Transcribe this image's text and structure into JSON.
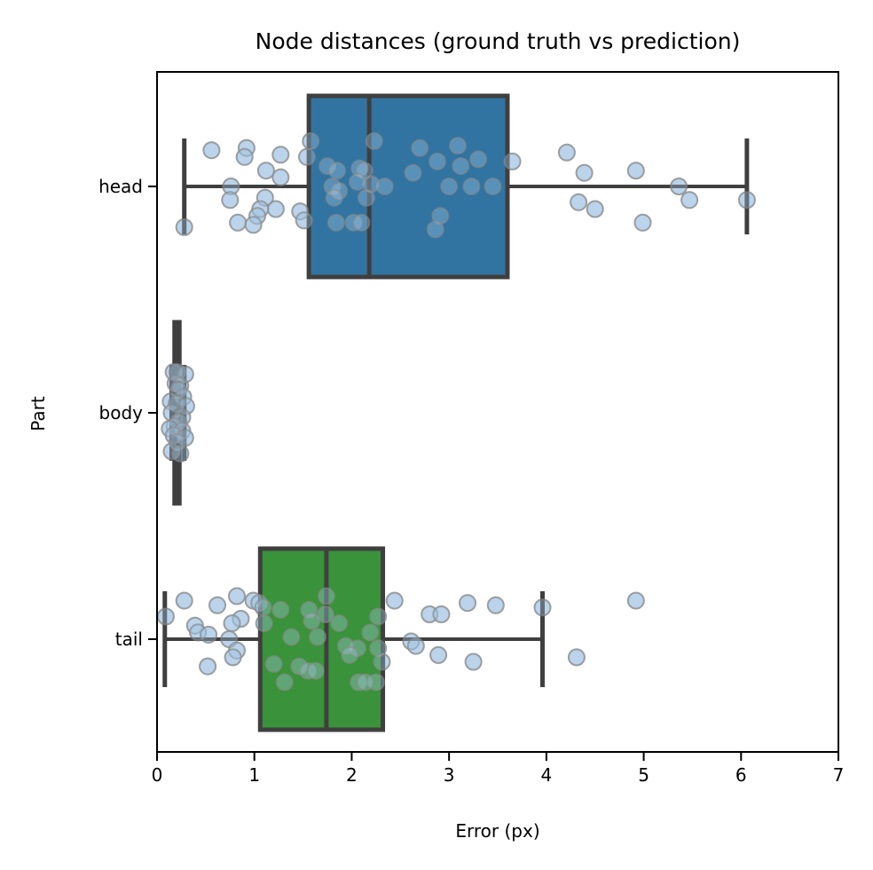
{
  "chart_data": {
    "type": "boxplot",
    "title": "Node distances (ground truth vs prediction)",
    "xlabel": "Error (px)",
    "ylabel": "Part",
    "xlim": [
      0,
      7
    ],
    "x_ticks": [
      0,
      1,
      2,
      3,
      4,
      5,
      6,
      7
    ],
    "categories": [
      "head",
      "body",
      "tail"
    ],
    "grid": false,
    "boxes": [
      {
        "category": "head",
        "color": "#3274a1",
        "whisker_low": 0.28,
        "q1": 1.56,
        "median": 2.18,
        "q3": 3.6,
        "whisker_high": 6.06
      },
      {
        "category": "body",
        "color": "#3274a1",
        "whisker_low": 0.15,
        "q1": 0.18,
        "median": 0.2,
        "q3": 0.23,
        "whisker_high": 0.28
      },
      {
        "category": "tail",
        "color": "#3a923a",
        "whisker_low": 0.08,
        "q1": 1.06,
        "median": 1.74,
        "q3": 2.32,
        "whisker_high": 3.96
      }
    ],
    "points": {
      "color": "#a7c8e6",
      "head": [
        [
          0.56,
          0.16
        ],
        [
          0.92,
          0.17
        ],
        [
          0.9,
          0.13
        ],
        [
          1.27,
          0.14
        ],
        [
          1.58,
          0.2
        ],
        [
          2.23,
          0.2
        ],
        [
          2.7,
          0.17
        ],
        [
          3.09,
          0.18
        ],
        [
          3.65,
          0.11
        ],
        [
          4.21,
          0.15
        ],
        [
          1.54,
          0.13
        ],
        [
          2.88,
          0.11
        ],
        [
          3.3,
          0.12
        ],
        [
          1.75,
          0.09
        ],
        [
          1.85,
          0.07
        ],
        [
          2.08,
          0.08
        ],
        [
          2.13,
          0.07
        ],
        [
          2.63,
          0.06
        ],
        [
          3.12,
          0.09
        ],
        [
          4.39,
          0.06
        ],
        [
          4.92,
          0.07
        ],
        [
          1.12,
          0.07
        ],
        [
          1.27,
          0.04
        ],
        [
          0.76,
          0.0
        ],
        [
          2.34,
          0.0
        ],
        [
          2.2,
          0.01
        ],
        [
          3.0,
          0.0
        ],
        [
          3.23,
          0.0
        ],
        [
          3.45,
          0.0
        ],
        [
          5.36,
          0.0
        ],
        [
          1.8,
          0.0
        ],
        [
          2.06,
          0.02
        ],
        [
          1.87,
          -0.02
        ],
        [
          0.75,
          -0.06
        ],
        [
          1.11,
          -0.05
        ],
        [
          1.82,
          -0.05
        ],
        [
          2.15,
          -0.05
        ],
        [
          4.33,
          -0.07
        ],
        [
          5.47,
          -0.06
        ],
        [
          6.06,
          -0.06
        ],
        [
          1.22,
          -0.1
        ],
        [
          4.5,
          -0.1
        ],
        [
          1.06,
          -0.1
        ],
        [
          1.47,
          -0.11
        ],
        [
          1.03,
          -0.13
        ],
        [
          0.83,
          -0.16
        ],
        [
          0.99,
          -0.17
        ],
        [
          1.84,
          -0.16
        ],
        [
          2.02,
          -0.16
        ],
        [
          2.1,
          -0.16
        ],
        [
          2.91,
          -0.13
        ],
        [
          4.99,
          -0.16
        ],
        [
          0.28,
          -0.18
        ],
        [
          2.86,
          -0.19
        ],
        [
          1.51,
          -0.15
        ]
      ],
      "body": [
        [
          0.17,
          0.18
        ],
        [
          0.21,
          0.18
        ],
        [
          0.29,
          0.17
        ],
        [
          0.19,
          0.13
        ],
        [
          0.24,
          0.12
        ],
        [
          0.22,
          0.1
        ],
        [
          0.27,
          0.07
        ],
        [
          0.14,
          0.05
        ],
        [
          0.2,
          0.04
        ],
        [
          0.3,
          0.03
        ],
        [
          0.15,
          0.0
        ],
        [
          0.26,
          -0.02
        ],
        [
          0.22,
          -0.04
        ],
        [
          0.18,
          -0.06
        ],
        [
          0.13,
          -0.07
        ],
        [
          0.26,
          -0.08
        ],
        [
          0.17,
          -0.1
        ],
        [
          0.29,
          -0.11
        ],
        [
          0.21,
          -0.13
        ],
        [
          0.15,
          -0.17
        ],
        [
          0.24,
          -0.18
        ]
      ],
      "tail": [
        [
          0.28,
          0.17
        ],
        [
          0.82,
          0.19
        ],
        [
          0.99,
          0.17
        ],
        [
          1.05,
          0.16
        ],
        [
          0.62,
          0.15
        ],
        [
          1.09,
          0.14
        ],
        [
          1.27,
          0.13
        ],
        [
          1.74,
          0.19
        ],
        [
          1.56,
          0.13
        ],
        [
          1.73,
          0.11
        ],
        [
          2.44,
          0.17
        ],
        [
          3.19,
          0.16
        ],
        [
          3.48,
          0.15
        ],
        [
          3.96,
          0.14
        ],
        [
          4.92,
          0.17
        ],
        [
          2.8,
          0.11
        ],
        [
          2.92,
          0.11
        ],
        [
          0.09,
          0.1
        ],
        [
          2.27,
          0.1
        ],
        [
          1.87,
          0.07
        ],
        [
          0.86,
          0.09
        ],
        [
          0.77,
          0.07
        ],
        [
          1.59,
          0.08
        ],
        [
          0.39,
          0.06
        ],
        [
          2.19,
          0.03
        ],
        [
          0.42,
          0.03
        ],
        [
          0.53,
          0.02
        ],
        [
          1.38,
          0.01
        ],
        [
          1.65,
          0.01
        ],
        [
          1.1,
          0.07
        ],
        [
          0.74,
          0.0
        ],
        [
          2.61,
          -0.01
        ],
        [
          2.66,
          -0.03
        ],
        [
          2.06,
          -0.04
        ],
        [
          0.82,
          -0.05
        ],
        [
          1.94,
          -0.03
        ],
        [
          2.27,
          -0.04
        ],
        [
          0.78,
          -0.08
        ],
        [
          2.89,
          -0.07
        ],
        [
          4.31,
          -0.08
        ],
        [
          1.2,
          -0.11
        ],
        [
          0.52,
          -0.12
        ],
        [
          1.46,
          -0.12
        ],
        [
          1.55,
          -0.14
        ],
        [
          3.25,
          -0.1
        ],
        [
          1.98,
          -0.07
        ],
        [
          1.31,
          -0.19
        ],
        [
          2.07,
          -0.19
        ],
        [
          2.25,
          -0.19
        ],
        [
          2.14,
          -0.19
        ],
        [
          2.31,
          -0.1
        ],
        [
          1.63,
          -0.14
        ]
      ]
    }
  }
}
